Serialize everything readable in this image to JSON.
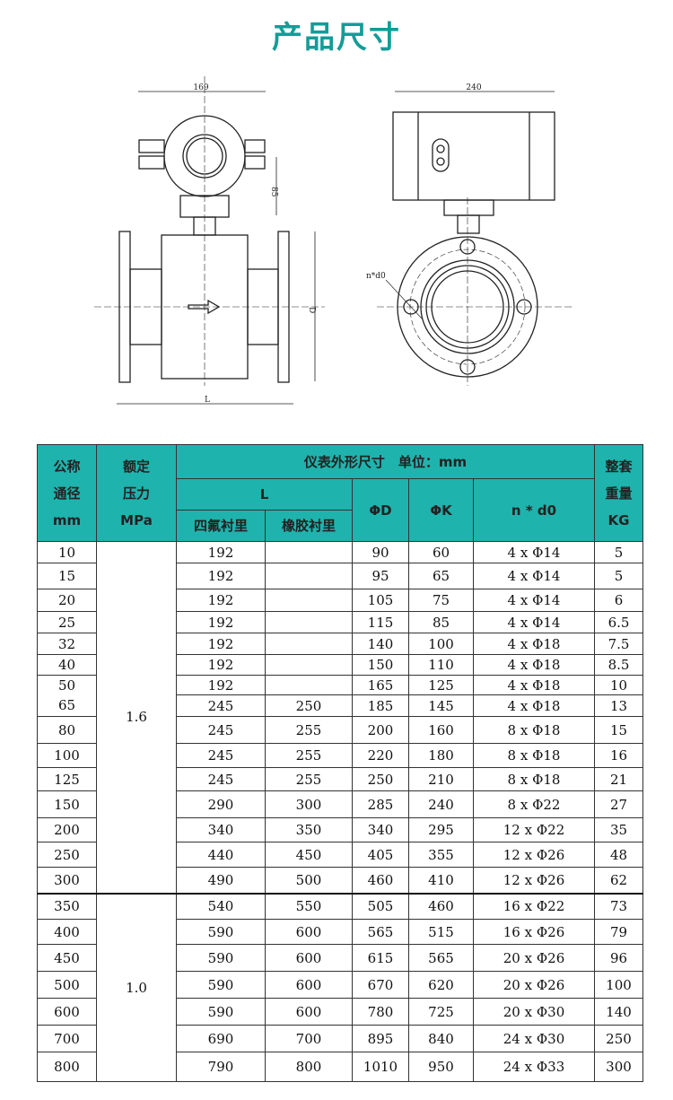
{
  "title": "产品尺寸",
  "drawing": {
    "dim_width_front": "169",
    "dim_height": "85",
    "dim_width_side": "240",
    "label_L": "L",
    "label_D": "D",
    "label_nd0": "n*d0"
  },
  "table": {
    "headers": {
      "dn": [
        "公称",
        "通径",
        "mm"
      ],
      "pressure": [
        "额定",
        "压力",
        "MPa"
      ],
      "dims": "仪表外形尺寸　单位：mm",
      "L": "L",
      "ptfe": "四氟衬里",
      "rubber": "橡胶衬里",
      "D": "ΦD",
      "K": "ΦK",
      "nd0": "n * d0",
      "weight": [
        "整套",
        "重量",
        "KG"
      ]
    },
    "pressure_groups": [
      {
        "value": "1.6",
        "rows": 15
      },
      {
        "value": "1.0",
        "rows": 7
      }
    ],
    "rows": [
      [
        "10",
        "192",
        "",
        "90",
        "60",
        "4 x Φ14",
        "5"
      ],
      [
        "15",
        "192",
        "",
        "95",
        "65",
        "4 x Φ14",
        "5"
      ],
      [
        "20",
        "192",
        "",
        "105",
        "75",
        "4 x Φ14",
        "6"
      ],
      [
        "25",
        "192",
        "",
        "115",
        "85",
        "4 x Φ14",
        "6.5"
      ],
      [
        "32",
        "192",
        "",
        "140",
        "100",
        "4 x Φ18",
        "7.5"
      ],
      [
        "40",
        "192",
        "",
        "150",
        "110",
        "4 x Φ18",
        "8.5"
      ],
      [
        "50",
        "192",
        "",
        "165",
        "125",
        "4 x Φ18",
        "10"
      ],
      [
        "65",
        "245",
        "250",
        "185",
        "145",
        "4 x Φ18",
        "13"
      ],
      [
        "80",
        "245",
        "255",
        "200",
        "160",
        "8 x Φ18",
        "15"
      ],
      [
        "100",
        "245",
        "255",
        "220",
        "180",
        "8 x Φ18",
        "16"
      ],
      [
        "125",
        "245",
        "255",
        "250",
        "210",
        "8 x Φ18",
        "21"
      ],
      [
        "150",
        "290",
        "300",
        "285",
        "240",
        "8 x Φ22",
        "27"
      ],
      [
        "200",
        "340",
        "350",
        "340",
        "295",
        "12 x Φ22",
        "35"
      ],
      [
        "250",
        "440",
        "450",
        "405",
        "355",
        "12 x Φ26",
        "48"
      ],
      [
        "300",
        "490",
        "500",
        "460",
        "410",
        "12 x Φ26",
        "62"
      ],
      [
        "350",
        "540",
        "550",
        "505",
        "460",
        "16 x Φ22",
        "73"
      ],
      [
        "400",
        "590",
        "600",
        "565",
        "515",
        "16 x Φ26",
        "79"
      ],
      [
        "450",
        "590",
        "600",
        "615",
        "565",
        "20 x Φ26",
        "96"
      ],
      [
        "500",
        "590",
        "600",
        "670",
        "620",
        "20 x Φ26",
        "100"
      ],
      [
        "600",
        "590",
        "600",
        "780",
        "725",
        "20 x Φ30",
        "140"
      ],
      [
        "700",
        "690",
        "700",
        "895",
        "840",
        "24 x Φ30",
        "250"
      ],
      [
        "800",
        "790",
        "800",
        "1010",
        "950",
        "24 x Φ33",
        "300"
      ]
    ]
  },
  "colors": {
    "accent": "#139c98",
    "header_bg": "#1fb3ad"
  }
}
